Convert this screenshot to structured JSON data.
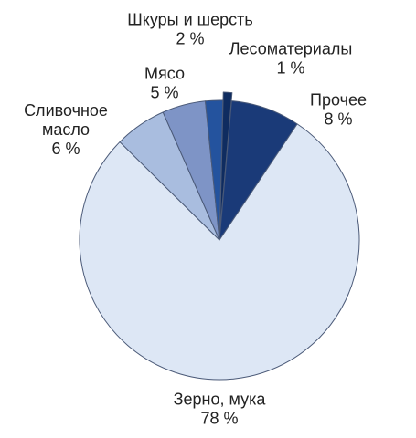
{
  "chart_data": {
    "type": "pie",
    "title": "",
    "unit": "%",
    "legend": "none",
    "slices": [
      {
        "label": "Прочее",
        "value": 8,
        "value_text": "8 %",
        "color": "#1a3a78"
      },
      {
        "label": "Зерно, мука",
        "value": 78,
        "value_text": "78 %",
        "color": "#dde7f5"
      },
      {
        "label": "Сливочное масло",
        "label_lines": [
          "Сливочное",
          "масло"
        ],
        "value": 6,
        "value_text": "6 %",
        "color": "#a9bddf"
      },
      {
        "label": "Мясо",
        "value": 5,
        "value_text": "5 %",
        "color": "#7e94c6"
      },
      {
        "label": "Шкуры и шерсть",
        "value": 2,
        "value_text": "2 %",
        "color": "#24539e"
      },
      {
        "label": "Лесоматериалы",
        "value": 1,
        "value_text": "1 %",
        "color": "#0f2c60",
        "exploded": true
      }
    ]
  }
}
